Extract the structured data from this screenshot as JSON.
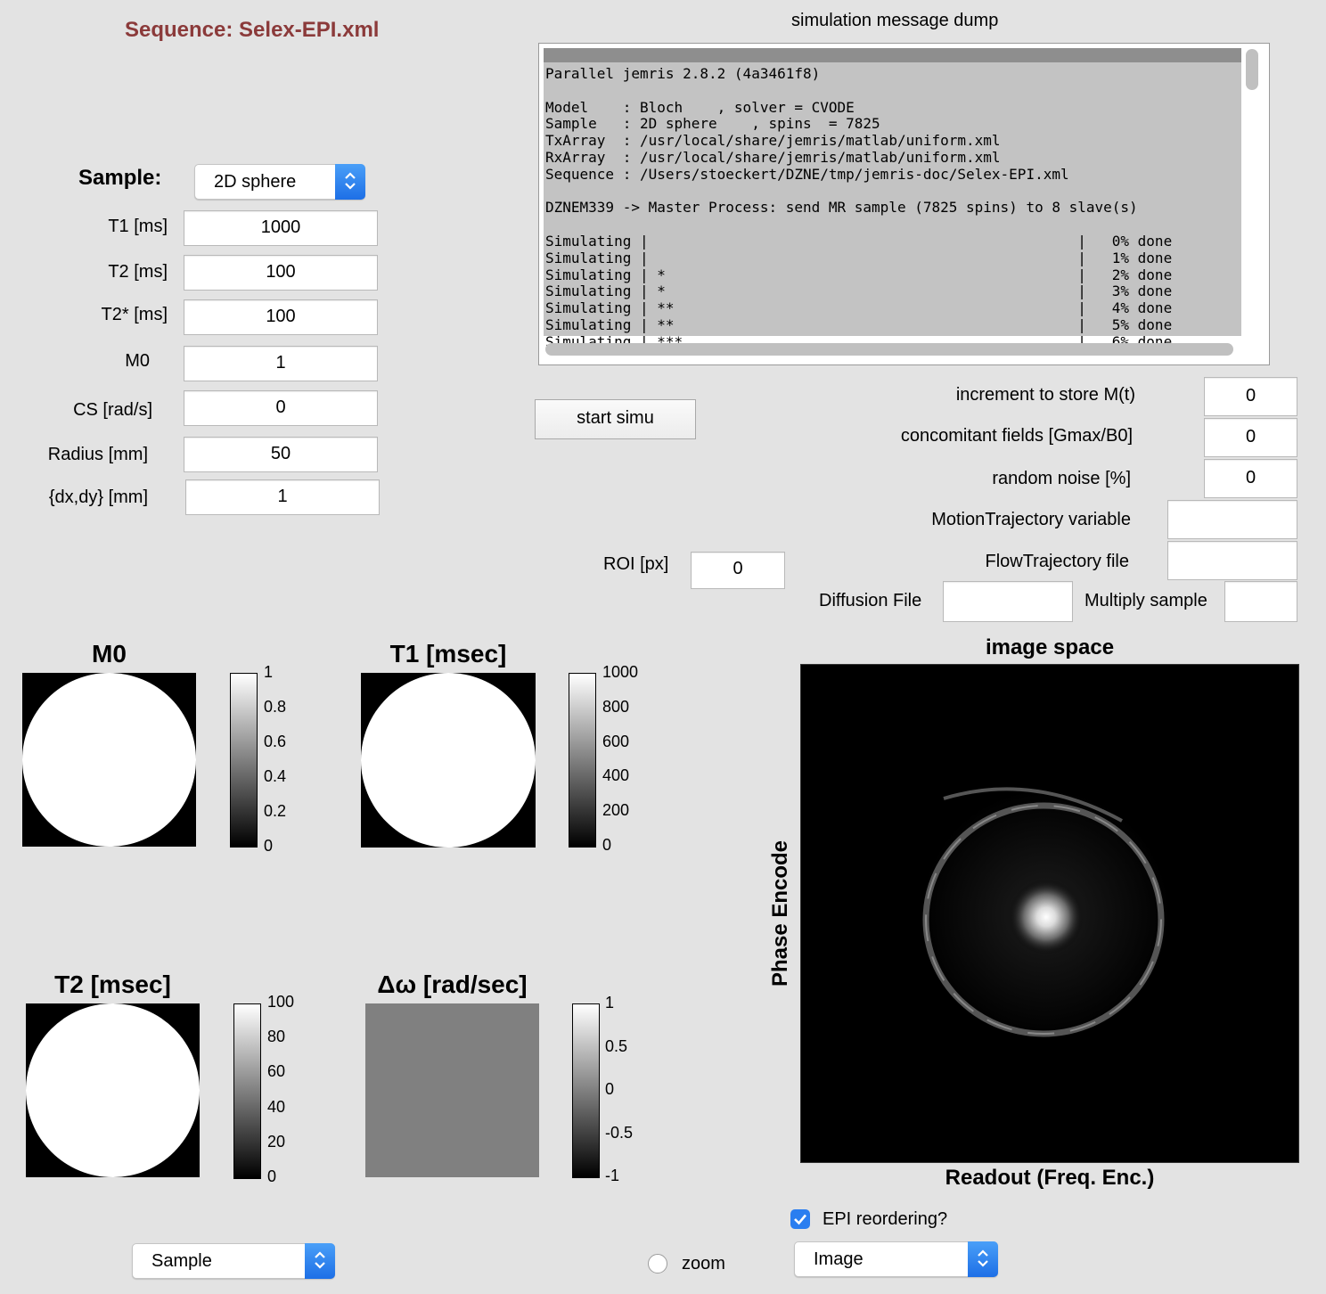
{
  "sequence_title": "Sequence: Selex-EPI.xml",
  "sample_panel": {
    "label": "Sample:",
    "selected": "2D sphere",
    "fields": [
      {
        "label": "T1 [ms]",
        "value": "1000"
      },
      {
        "label": "T2 [ms]",
        "value": "100"
      },
      {
        "label": "T2* [ms]",
        "value": "100"
      },
      {
        "label": "M0",
        "value": "1"
      },
      {
        "label": "CS [rad/s]",
        "value": "0"
      },
      {
        "label": "Radius [mm]",
        "value": "50"
      },
      {
        "label": "{dx,dy} [mm]",
        "value": "1"
      }
    ]
  },
  "console": {
    "title": "simulation message dump",
    "text": "Parallel jemris 2.8.2 (4a3461f8)\n\nModel    : Bloch    , solver = CVODE\nSample   : 2D sphere    , spins  = 7825\nTxArray  : /usr/local/share/jemris/matlab/uniform.xml\nRxArray  : /usr/local/share/jemris/matlab/uniform.xml\nSequence : /Users/stoeckert/DZNE/tmp/jemris-doc/Selex-EPI.xml\n\nDZNEM339 -> Master Process: send MR sample (7825 spins) to 8 slave(s)\n\nSimulating |                                                  |   0% done\nSimulating |                                                  |   1% done\nSimulating | *                                                |   2% done\nSimulating | *                                                |   3% done\nSimulating | **                                               |   4% done\nSimulating | **                                               |   5% done\nSimulating | ***                                              |   6% done"
  },
  "controls": {
    "start_button": "start simu",
    "increment_label": "increment to store M(t)",
    "increment_value": "0",
    "concomitant_label": "concomitant fields [Gmax/B0]",
    "concomitant_value": "0",
    "noise_label": "random noise [%]",
    "noise_value": "0",
    "motion_label": "MotionTrajectory variable",
    "motion_value": "",
    "flow_label": "FlowTrajectory file",
    "flow_value": "",
    "roi_label": "ROI [px]",
    "roi_value": "0",
    "diffusion_label": "Diffusion File",
    "diffusion_value": "",
    "multiply_label": "Multiply sample",
    "multiply_value": ""
  },
  "sample_maps": [
    {
      "title": "M0",
      "ticks": [
        "1",
        "0.8",
        "0.6",
        "0.4",
        "0.2",
        "0"
      ]
    },
    {
      "title": "T1 [msec]",
      "ticks": [
        "1000",
        "800",
        "600",
        "400",
        "200",
        "0"
      ]
    },
    {
      "title": "T2 [msec]",
      "ticks": [
        "100",
        "80",
        "60",
        "40",
        "20",
        "0"
      ]
    },
    {
      "title": "Δω [rad/sec]",
      "ticks": [
        "1",
        "0.5",
        "0",
        "-0.5",
        "-1"
      ]
    }
  ],
  "image_view": {
    "title": "image space",
    "ylabel": "Phase Encode",
    "xlabel": "Readout (Freq. Enc.)"
  },
  "bottom": {
    "left_popup": "Sample",
    "zoom_label": "zoom",
    "zoom_checked": false,
    "epi_label": "EPI reordering?",
    "epi_checked": true,
    "right_popup": "Image"
  },
  "colors": {
    "title": "#8b3a3a",
    "accent": "#2a7ef0"
  }
}
